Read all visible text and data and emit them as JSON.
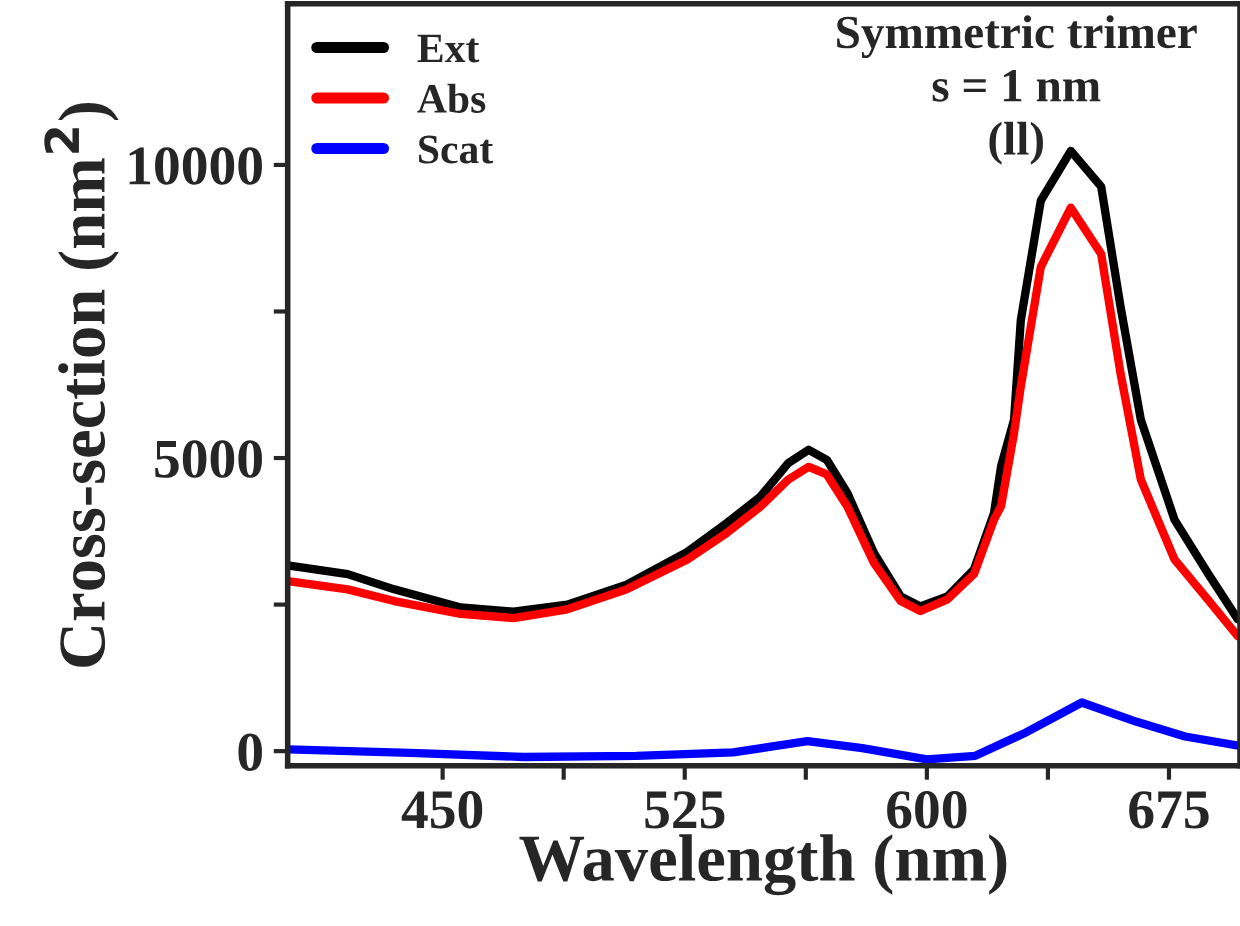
{
  "chart_data": {
    "type": "line",
    "xlabel": "Wavelength (nm)",
    "ylabel": "Cross-section (nm$^{2}$)",
    "annotations": [
      "Symmetric trimer",
      "s = 1 nm",
      "(ll)"
    ],
    "xlim": [
      402,
      697
    ],
    "ylim": [
      -250,
      12750
    ],
    "xticks": [
      450,
      {
        "value": 487.5,
        "label": null
      },
      525,
      {
        "value": 562.5,
        "label": null
      },
      600,
      {
        "value": 637.5,
        "label": null
      },
      675
    ],
    "yticks": [
      0,
      {
        "value": 2500,
        "label": null
      },
      5000,
      {
        "value": 7500,
        "label": null
      },
      10000
    ],
    "legend": "top left",
    "grid": false,
    "marker": "none",
    "line_style": "solid",
    "series": [
      {
        "name": "Ext",
        "color": "#000000",
        "x": [
          402,
          420.6,
          435,
          455.6,
          472,
          488.6,
          507,
          525.8,
          538,
          548.4,
          557,
          563.4,
          569,
          575.4,
          583.6,
          591.9,
          598,
          606.4,
          614.6,
          620.8,
          623,
          627,
          629.1,
          635.3,
          644.6,
          654,
          660,
          666.3,
          676.7,
          687,
          696.3
        ],
        "values": [
          3170,
          3020,
          2760,
          2450,
          2380,
          2500,
          2840,
          3400,
          3890,
          4340,
          4910,
          5140,
          4970,
          4400,
          3380,
          2640,
          2470,
          2640,
          3100,
          4060,
          4860,
          5650,
          7350,
          9390,
          10240,
          9630,
          7580,
          5650,
          3950,
          3040,
          2250
        ]
      },
      {
        "name": "Abs",
        "color": "#ff0000",
        "x": [
          402,
          420.6,
          435,
          455.6,
          472,
          488.6,
          507,
          525.8,
          538,
          548.4,
          557,
          563.4,
          569,
          575.4,
          583.6,
          591.9,
          598,
          606.4,
          614.6,
          620.8,
          623,
          627,
          629.1,
          635.3,
          644.6,
          654,
          660,
          666.3,
          676.7,
          687,
          696.3
        ],
        "values": [
          2900,
          2760,
          2560,
          2340,
          2270,
          2420,
          2760,
          3270,
          3720,
          4170,
          4630,
          4850,
          4720,
          4170,
          3210,
          2560,
          2390,
          2590,
          3020,
          3950,
          4180,
          5420,
          6220,
          8260,
          9270,
          8480,
          6440,
          4630,
          3270,
          2590,
          1960
        ]
      },
      {
        "name": "Scat",
        "color": "#0000ff",
        "x": [
          402,
          440,
          475,
          510,
          540,
          563,
          580,
          600,
          615,
          630,
          648,
          665,
          680,
          697
        ],
        "values": [
          30,
          -30,
          -100,
          -80,
          -20,
          170,
          50,
          -140,
          -80,
          300,
          830,
          500,
          250,
          90
        ]
      }
    ]
  }
}
